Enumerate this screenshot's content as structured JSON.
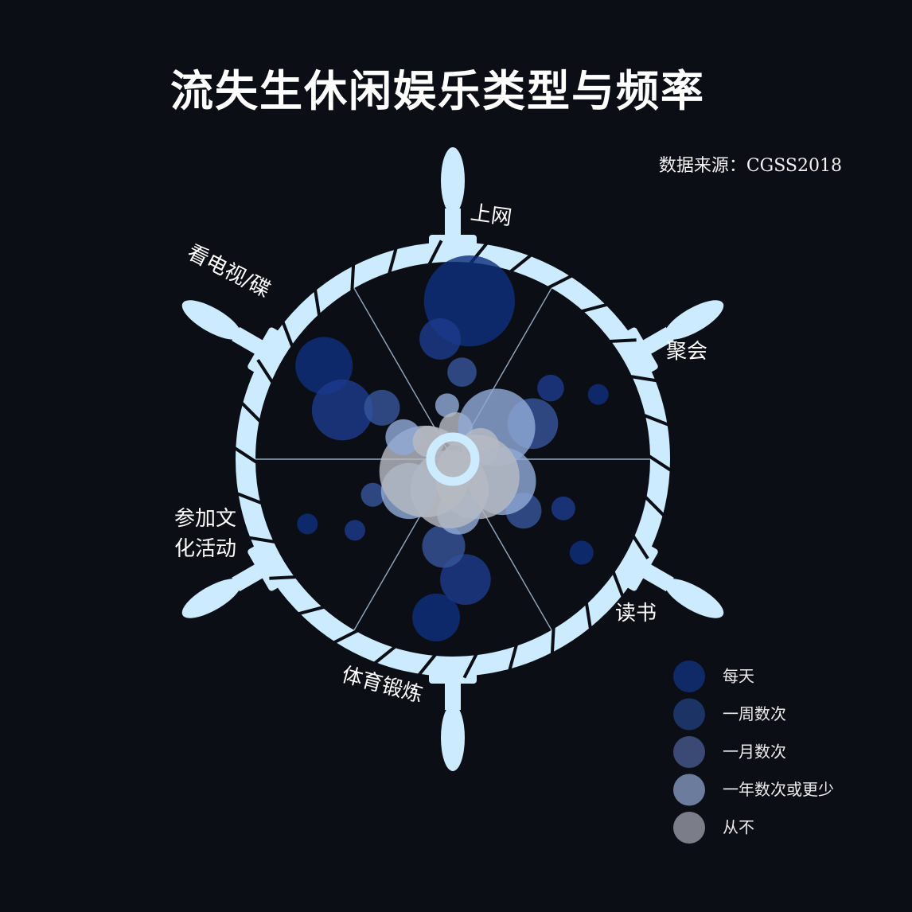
{
  "title": "流失生休闲娱乐类型与频率",
  "source": "数据来源：CGSS2018",
  "colors": {
    "background": "#0c0e15",
    "wheel": "#cdebff",
    "frequency": [
      "#0f2f7d",
      "#1c3a8c",
      "#36549a",
      "#8fa8d6",
      "#b6b9c2"
    ]
  },
  "legend": {
    "items": [
      "每天",
      "一周数次",
      "一月数次",
      "一年数次或更少",
      "从不"
    ],
    "colors": [
      "#0f2a66",
      "#1c3366",
      "#3b4a74",
      "#6b7c9c",
      "#7b7e88"
    ]
  },
  "chart_data": {
    "type": "radial-bubble",
    "categories": [
      "上网",
      "聚会",
      "读书",
      "体育锻炼",
      "参加文化活动",
      "看电视/碟"
    ],
    "levels": [
      "每天",
      "一周数次",
      "一月数次",
      "一年数次或更少",
      "从不"
    ],
    "series": [
      {
        "name": "上网",
        "values": [
          58,
          12,
          6,
          4,
          8
        ]
      },
      {
        "name": "聚会",
        "values": [
          3,
          5,
          18,
          42,
          10
        ]
      },
      {
        "name": "读书",
        "values": [
          4,
          4,
          9,
          32,
          50
        ]
      },
      {
        "name": "体育锻炼",
        "values": [
          16,
          18,
          13,
          13,
          43
        ]
      },
      {
        "name": "参加文化活动",
        "values": [
          3,
          3,
          4,
          22,
          59
        ]
      },
      {
        "name": "看电视/碟",
        "values": [
          23,
          26,
          9,
          9,
          7
        ]
      }
    ]
  }
}
